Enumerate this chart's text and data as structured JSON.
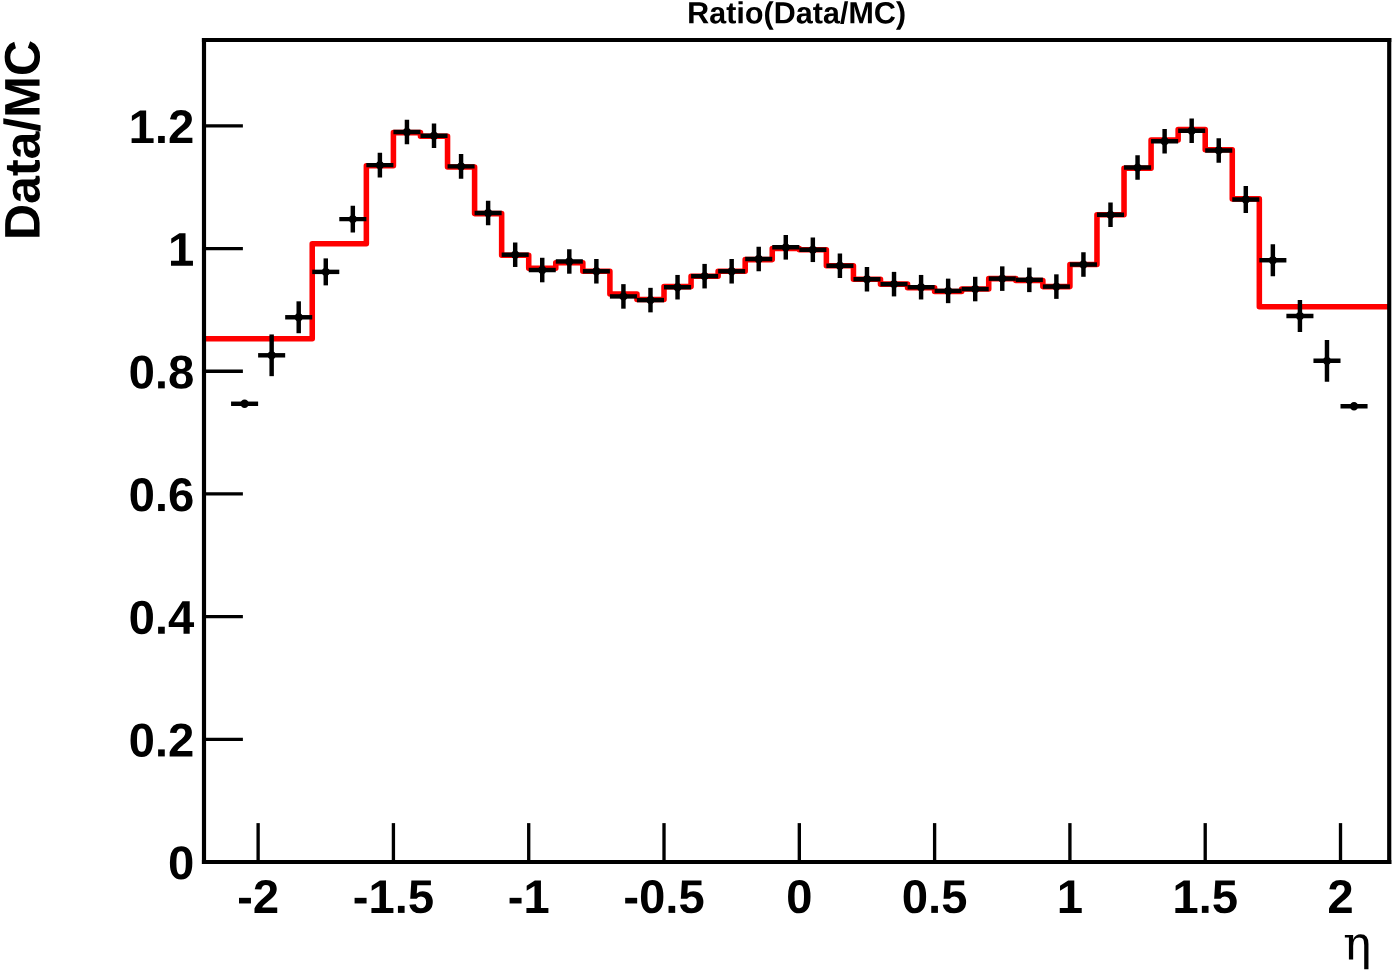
{
  "chart_data": {
    "type": "scatter",
    "title": "Ratio(Data/MC)",
    "xlabel": "η",
    "ylabel": "Data/MC",
    "xlim": [
      -2.2,
      2.18
    ],
    "ylim": [
      0,
      1.34
    ],
    "xticks": [
      -2,
      -1.5,
      -1,
      -0.5,
      0,
      0.5,
      1,
      1.5,
      2
    ],
    "yticks": [
      0,
      0.2,
      0.4,
      0.6,
      0.8,
      1,
      1.2
    ],
    "grid": false,
    "legend": false,
    "series": [
      {
        "color": "#000000",
        "x": [
          -2.05,
          -1.95,
          -1.85,
          -1.75,
          -1.65,
          -1.55,
          -1.45,
          -1.35,
          -1.25,
          -1.15,
          -1.05,
          -0.95,
          -0.85,
          -0.75,
          -0.65,
          -0.55,
          -0.45,
          -0.35,
          -0.25,
          -0.15,
          -0.05,
          0.05,
          0.15,
          0.25,
          0.35,
          0.45,
          0.55,
          0.65,
          0.75,
          0.85,
          0.95,
          1.05,
          1.15,
          1.25,
          1.35,
          1.45,
          1.55,
          1.65,
          1.75,
          1.85,
          1.95,
          2.05
        ],
        "values": [
          0.747,
          0.826,
          0.888,
          0.962,
          1.048,
          1.136,
          1.19,
          1.184,
          1.134,
          1.058,
          0.99,
          0.965,
          0.979,
          0.963,
          0.922,
          0.916,
          0.937,
          0.955,
          0.963,
          0.983,
          1.002,
          0.998,
          0.972,
          0.95,
          0.942,
          0.937,
          0.931,
          0.934,
          0.951,
          0.949,
          0.938,
          0.974,
          1.055,
          1.132,
          1.175,
          1.192,
          1.16,
          1.08,
          0.981,
          0.89,
          0.817,
          0.743
        ],
        "errors": [
          null,
          0.034,
          0.026,
          0.022,
          0.022,
          0.02,
          0.02,
          0.02,
          0.02,
          0.02,
          0.02,
          0.02,
          0.02,
          0.02,
          0.02,
          0.02,
          0.02,
          0.02,
          0.02,
          0.02,
          0.02,
          0.02,
          0.02,
          0.02,
          0.02,
          0.02,
          0.02,
          0.02,
          0.02,
          0.02,
          0.02,
          0.02,
          0.02,
          0.02,
          0.02,
          0.02,
          0.02,
          0.022,
          0.026,
          0.026,
          0.034,
          null
        ],
        "xerrors": [
          0.05,
          0.05,
          0.05,
          0.05,
          0.05,
          0.05,
          0.05,
          0.05,
          0.05,
          0.05,
          0.05,
          0.05,
          0.05,
          0.05,
          0.05,
          0.05,
          0.05,
          0.05,
          0.05,
          0.05,
          0.05,
          0.05,
          0.05,
          0.05,
          0.05,
          0.05,
          0.05,
          0.05,
          0.05,
          0.05,
          0.05,
          0.05,
          0.05,
          0.05,
          0.05,
          0.05,
          0.05,
          0.05,
          0.05,
          0.05,
          0.05,
          0.05
        ]
      },
      {
        "type": "step",
        "color": "#ff0000",
        "x": [
          -2.2,
          -1.8,
          -1.6,
          -1.5,
          -1.4,
          -1.3,
          -1.2,
          -1.1,
          -1.0,
          -0.9,
          -0.8,
          -0.7,
          -0.6,
          -0.5,
          -0.4,
          -0.3,
          -0.2,
          -0.1,
          0,
          0.1,
          0.2,
          0.3,
          0.4,
          0.5,
          0.6,
          0.7,
          0.8,
          0.9,
          1.0,
          1.1,
          1.2,
          1.3,
          1.4,
          1.5,
          1.6,
          1.7,
          2.18
        ],
        "values": [
          0.853,
          1.008,
          1.135,
          1.189,
          1.183,
          1.133,
          1.057,
          0.989,
          0.968,
          0.977,
          0.963,
          0.926,
          0.917,
          0.938,
          0.955,
          0.963,
          0.982,
          1.0,
          0.998,
          0.972,
          0.95,
          0.942,
          0.936,
          0.93,
          0.934,
          0.951,
          0.948,
          0.938,
          0.974,
          1.055,
          1.131,
          1.177,
          1.194,
          1.161,
          1.081,
          0.905,
          0.905
        ]
      }
    ]
  }
}
